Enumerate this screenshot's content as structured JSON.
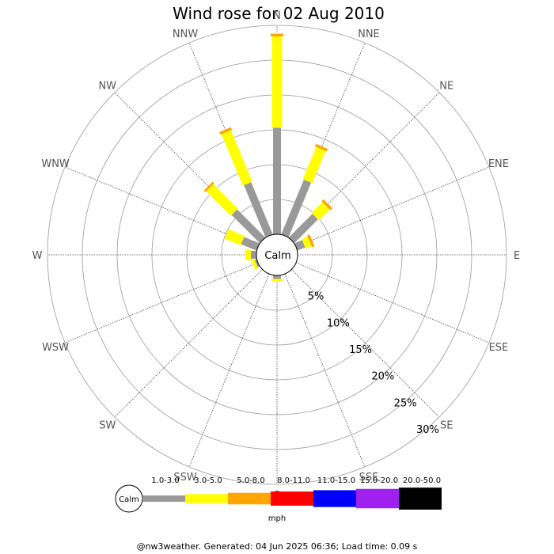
{
  "chart_data": {
    "type": "windrose",
    "title": "Wind rose for 02 Aug 2010",
    "directions": [
      "N",
      "NNE",
      "NE",
      "ENE",
      "E",
      "ESE",
      "SE",
      "SSE",
      "S",
      "SSW",
      "SW",
      "WSW",
      "W",
      "WNW",
      "NW",
      "NNW"
    ],
    "ring_labels": [
      "5%",
      "10%",
      "15%",
      "20%",
      "25%",
      "30%"
    ],
    "ring_max_percent": 30,
    "calm_label": "Calm",
    "unit": "mph",
    "speed_bins": [
      {
        "label": "1.0-3.0",
        "color": "#999999"
      },
      {
        "label": "3.0-5.0",
        "color": "#ffff00"
      },
      {
        "label": "5.0-8.0",
        "color": "#ffa500"
      },
      {
        "label": "8.0-11.0",
        "color": "#ff0000"
      },
      {
        "label": "11.0-15.0",
        "color": "#0000ff"
      },
      {
        "label": "15.0-20.0",
        "color": "#a020f0"
      },
      {
        "label": "20.0-50.0",
        "color": "#000000"
      }
    ],
    "series": [
      {
        "direction": "N",
        "values": [
          15.3,
          13.1,
          0.4,
          0,
          0,
          0,
          0
        ]
      },
      {
        "direction": "NNE",
        "values": [
          8.5,
          5.0,
          0.4,
          0,
          0,
          0,
          0
        ]
      },
      {
        "direction": "NE",
        "values": [
          4.8,
          2.2,
          0.4,
          0,
          0,
          0,
          0
        ]
      },
      {
        "direction": "ENE",
        "values": [
          1.2,
          0.9,
          0.4,
          0,
          0,
          0,
          0
        ]
      },
      {
        "direction": "E",
        "values": [
          0,
          0,
          0,
          0,
          0,
          0,
          0
        ]
      },
      {
        "direction": "ESE",
        "values": [
          0,
          0,
          0,
          0,
          0,
          0,
          0
        ]
      },
      {
        "direction": "SE",
        "values": [
          0,
          0,
          0,
          0,
          0,
          0,
          0
        ]
      },
      {
        "direction": "SSE",
        "values": [
          0,
          0,
          0,
          0,
          0,
          0,
          0
        ]
      },
      {
        "direction": "S",
        "values": [
          0.5,
          0.4,
          0,
          0,
          0,
          0,
          0
        ]
      },
      {
        "direction": "SSW",
        "values": [
          0,
          0,
          0,
          0,
          0,
          0,
          0
        ]
      },
      {
        "direction": "SW",
        "values": [
          0,
          0,
          0,
          0,
          0,
          0,
          0
        ]
      },
      {
        "direction": "WSW",
        "values": [
          0.3,
          0.5,
          0,
          0,
          0,
          0,
          0
        ]
      },
      {
        "direction": "W",
        "values": [
          0.8,
          0.8,
          0,
          0,
          0,
          0,
          0
        ]
      },
      {
        "direction": "WNW",
        "values": [
          2.4,
          2.5,
          0,
          0,
          0,
          0,
          0
        ]
      },
      {
        "direction": "NW",
        "values": [
          5.7,
          5.0,
          0.3,
          0,
          0,
          0,
          0
        ]
      },
      {
        "direction": "NNW",
        "values": [
          8.1,
          8.0,
          0.4,
          0,
          0,
          0,
          0
        ]
      }
    ]
  },
  "footer": "@nw3weather. Generated: 04 Jun 2025 06:36; Load time: 0.09 s"
}
